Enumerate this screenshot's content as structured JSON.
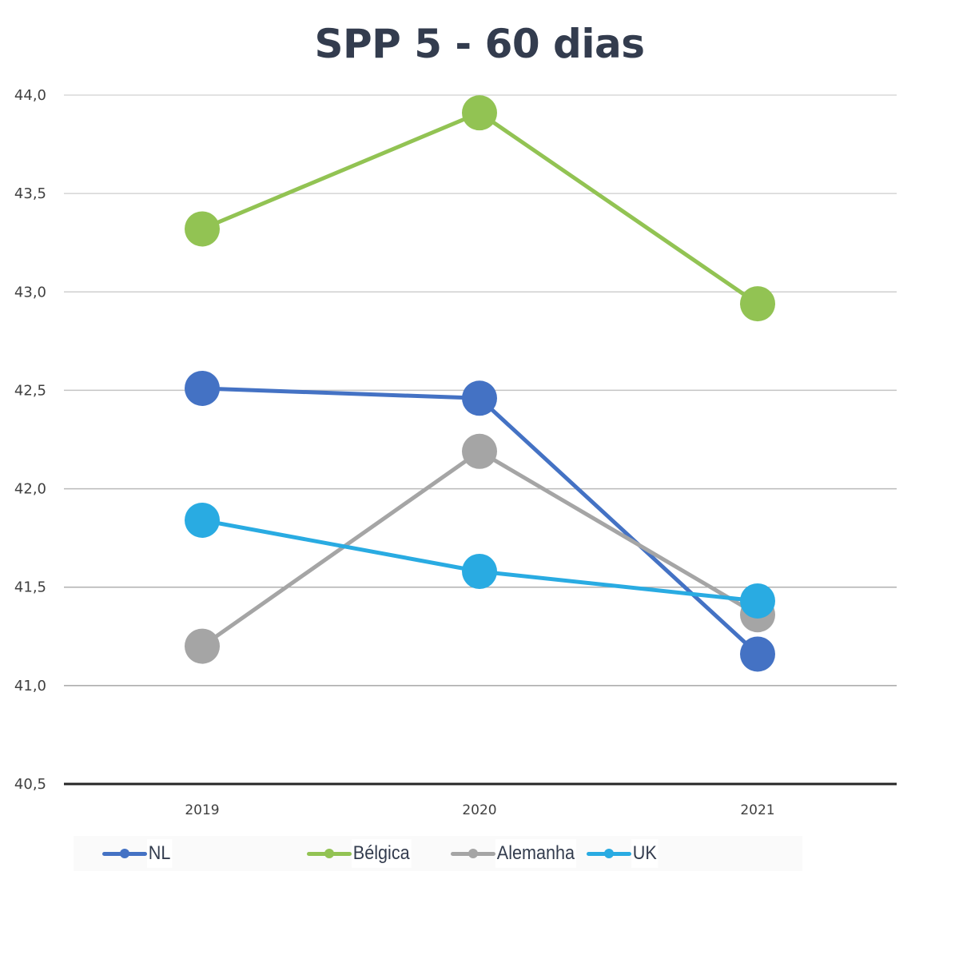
{
  "chart_data": {
    "type": "line",
    "title": "SPP  5 - 60 dias",
    "xlabel": "",
    "ylabel": "",
    "categories": [
      "2019",
      "2020",
      "2021"
    ],
    "ylim": [
      40.5,
      44.0
    ],
    "yticks": [
      "40,5",
      "41,0",
      "41,5",
      "42,0",
      "42,5",
      "43,0",
      "43,5",
      "44,0"
    ],
    "ytick_values": [
      40.5,
      41.0,
      41.5,
      42.0,
      42.5,
      43.0,
      43.5,
      44.0
    ],
    "grid": true,
    "legend_position": "bottom",
    "series": [
      {
        "name": "NL",
        "color": "#4472c4",
        "values": [
          42.51,
          42.46,
          41.16
        ]
      },
      {
        "name": "Bélgica",
        "color": "#92c353",
        "values": [
          43.32,
          43.91,
          42.94
        ]
      },
      {
        "name": "Alemanha",
        "color": "#a5a5a5",
        "values": [
          41.2,
          42.19,
          41.36
        ]
      },
      {
        "name": "UK",
        "color": "#29abe2",
        "values": [
          41.84,
          41.58,
          41.43
        ]
      }
    ],
    "draw_order": [
      "Bélgica",
      "NL",
      "Alemanha",
      "UK"
    ]
  }
}
